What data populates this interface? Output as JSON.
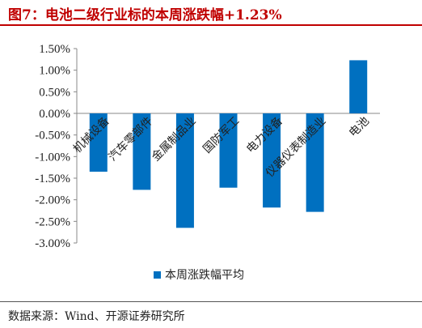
{
  "header": {
    "title": "图7：电池二级行业标的本周涨跌幅+1.23%"
  },
  "footer": {
    "source": "数据来源：Wind、开源证券研究所"
  },
  "colors": {
    "bar": "#0070c0",
    "title": "#c00000"
  },
  "chart_data": {
    "type": "bar",
    "title": "",
    "xlabel": "",
    "ylabel": "",
    "categories": [
      "机械设备",
      "汽车零部件",
      "金属制品业",
      "国防军工",
      "电力设备",
      "仪器仪表制造业",
      "电池"
    ],
    "series": [
      {
        "name": "本周涨跌幅平均",
        "values": [
          -1.35,
          -1.77,
          -2.65,
          -1.72,
          -2.18,
          -2.28,
          1.23
        ]
      }
    ],
    "ylim": [
      -3.0,
      1.5
    ],
    "yticks": [
      "1.50%",
      "1.00%",
      "0.50%",
      "0.00%",
      "-0.50%",
      "-1.00%",
      "-1.50%",
      "-2.00%",
      "-2.50%",
      "-3.00%"
    ],
    "ytick_values": [
      1.5,
      1.0,
      0.5,
      0.0,
      -0.5,
      -1.0,
      -1.5,
      -2.0,
      -2.5,
      -3.0
    ],
    "grid": false,
    "legend_position": "bottom"
  }
}
